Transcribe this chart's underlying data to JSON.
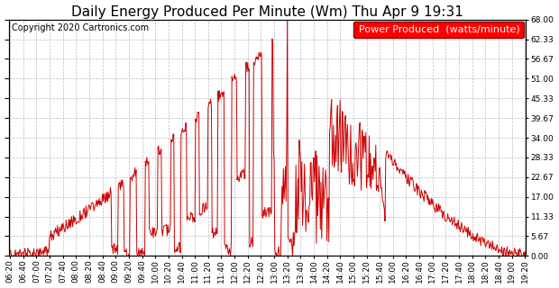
{
  "title": "Daily Energy Produced Per Minute (Wm) Thu Apr 9 19:31",
  "copyright": "Copyright 2020 Cartronics.com",
  "legend_label": "Power Produced  (watts/minute)",
  "line_color": "#cc0000",
  "background_color": "#ffffff",
  "plot_bg_color": "#ffffff",
  "grid_color": "#bbbbbb",
  "ylim": [
    0.0,
    68.0
  ],
  "yticks": [
    0.0,
    5.67,
    11.33,
    17.0,
    22.67,
    28.33,
    34.0,
    39.67,
    45.33,
    51.0,
    56.67,
    62.33,
    68.0
  ],
  "title_fontsize": 11,
  "copyright_fontsize": 7,
  "legend_fontsize": 8,
  "tick_fontsize": 6.5
}
